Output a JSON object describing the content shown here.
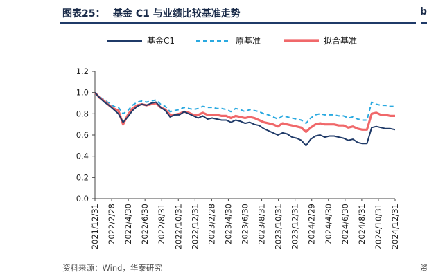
{
  "header": {
    "title_prefix": "图表25：",
    "title_main": "基金 C1 与业绩比较基准走势",
    "right_cut_text": "b"
  },
  "footer": {
    "source": "资料来源：Wind，华泰研究",
    "right_cut_text": "资"
  },
  "colors": {
    "fund": "#1f3a68",
    "original": "#2aa9e0",
    "fitted": "#f0686a",
    "rule": "#1f3a68"
  },
  "chart_data": {
    "type": "line",
    "title": "基金 C1 与业绩比较基准走势",
    "xlabel": "",
    "ylabel": "",
    "ylim": [
      0,
      1.2
    ],
    "yticks": [
      "0.0",
      "0.2",
      "0.4",
      "0.6",
      "0.8",
      "1.0",
      "1.2"
    ],
    "xticks": [
      "2021/12/31",
      "2022/2/28",
      "2022/4/30",
      "2022/6/30",
      "2022/8/31",
      "2022/10/31",
      "2022/12/31",
      "2023/2/28",
      "2023/4/30",
      "2023/6/30",
      "2023/8/31",
      "2023/10/31",
      "2023/12/31",
      "2024/2/29",
      "2024/4/30",
      "2024/6/30",
      "2024/8/31",
      "2024/10/31",
      "2024/12/31"
    ],
    "grid": false,
    "legend_position": "top",
    "series": [
      {
        "name": "基金C1",
        "style": "solid",
        "values": [
          1.0,
          0.95,
          0.91,
          0.88,
          0.84,
          0.8,
          0.72,
          0.77,
          0.83,
          0.87,
          0.89,
          0.88,
          0.9,
          0.91,
          0.86,
          0.83,
          0.77,
          0.79,
          0.79,
          0.82,
          0.8,
          0.78,
          0.76,
          0.78,
          0.75,
          0.76,
          0.75,
          0.74,
          0.74,
          0.72,
          0.74,
          0.73,
          0.71,
          0.72,
          0.7,
          0.69,
          0.66,
          0.64,
          0.62,
          0.6,
          0.62,
          0.61,
          0.58,
          0.57,
          0.55,
          0.5,
          0.56,
          0.59,
          0.6,
          0.58,
          0.59,
          0.59,
          0.58,
          0.57,
          0.55,
          0.56,
          0.53,
          0.52,
          0.52,
          0.67,
          0.68,
          0.67,
          0.66,
          0.66,
          0.65
        ]
      },
      {
        "name": "原基准",
        "style": "dashed",
        "values": [
          1.0,
          0.96,
          0.93,
          0.9,
          0.87,
          0.86,
          0.8,
          0.83,
          0.88,
          0.91,
          0.92,
          0.91,
          0.92,
          0.93,
          0.89,
          0.87,
          0.82,
          0.83,
          0.84,
          0.86,
          0.85,
          0.84,
          0.85,
          0.87,
          0.86,
          0.86,
          0.85,
          0.85,
          0.84,
          0.82,
          0.85,
          0.84,
          0.82,
          0.84,
          0.83,
          0.82,
          0.8,
          0.79,
          0.77,
          0.75,
          0.78,
          0.77,
          0.76,
          0.75,
          0.74,
          0.71,
          0.76,
          0.79,
          0.8,
          0.79,
          0.79,
          0.79,
          0.78,
          0.78,
          0.76,
          0.77,
          0.75,
          0.74,
          0.74,
          0.91,
          0.89,
          0.88,
          0.88,
          0.87,
          0.87
        ]
      },
      {
        "name": "拟合基准",
        "style": "solid-thick",
        "values": [
          1.0,
          0.95,
          0.92,
          0.88,
          0.85,
          0.83,
          0.7,
          0.79,
          0.85,
          0.88,
          0.89,
          0.88,
          0.89,
          0.9,
          0.86,
          0.84,
          0.79,
          0.79,
          0.8,
          0.82,
          0.81,
          0.79,
          0.79,
          0.81,
          0.79,
          0.79,
          0.79,
          0.78,
          0.78,
          0.76,
          0.78,
          0.77,
          0.76,
          0.77,
          0.76,
          0.74,
          0.72,
          0.71,
          0.7,
          0.68,
          0.71,
          0.7,
          0.69,
          0.68,
          0.67,
          0.63,
          0.67,
          0.7,
          0.71,
          0.7,
          0.7,
          0.7,
          0.69,
          0.69,
          0.67,
          0.68,
          0.66,
          0.65,
          0.65,
          0.8,
          0.81,
          0.79,
          0.79,
          0.78,
          0.78
        ]
      }
    ]
  }
}
